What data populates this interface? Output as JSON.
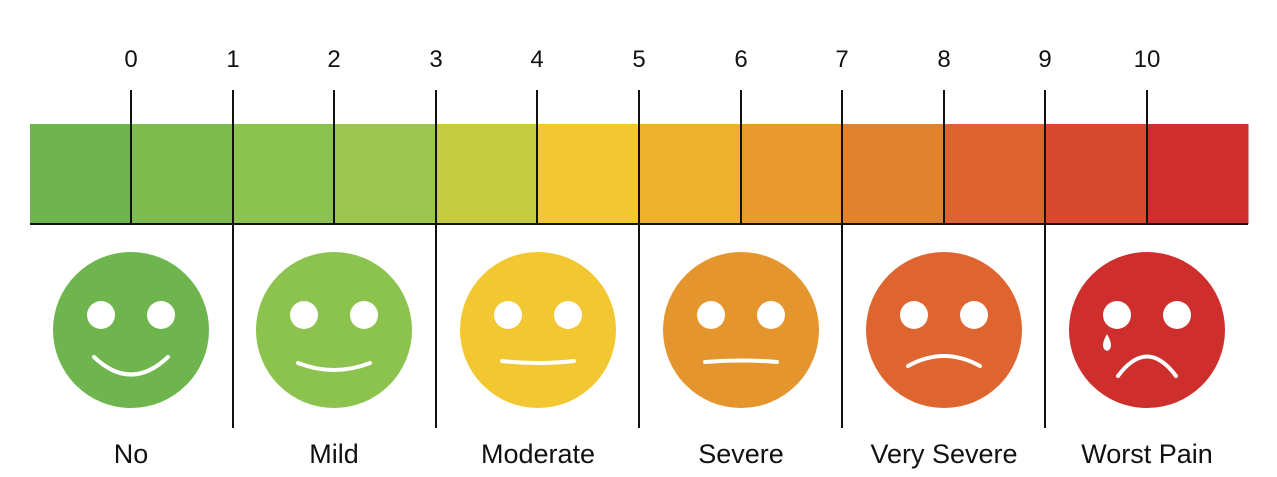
{
  "scale": {
    "ticks": [
      "0",
      "1",
      "2",
      "3",
      "4",
      "5",
      "6",
      "7",
      "8",
      "9",
      "10"
    ],
    "segment_colors": [
      "#6db54c",
      "#7dbc4c",
      "#8bc34e",
      "#9bc54c",
      "#c4cb3e",
      "#f2c732",
      "#edb12d",
      "#e89a2e",
      "#e2822c",
      "#dd6430",
      "#d8492e",
      "#cf2f2c"
    ],
    "line_color": "#111111"
  },
  "faces": [
    {
      "label": "No",
      "color": "#6db54c",
      "mood": "big-smile",
      "icon": "smiling-face-icon"
    },
    {
      "label": "Mild",
      "color": "#8bc34e",
      "mood": "smile",
      "icon": "slight-smile-face-icon"
    },
    {
      "label": "Moderate",
      "color": "#f2c732",
      "mood": "neutral",
      "icon": "neutral-face-icon"
    },
    {
      "label": "Severe",
      "color": "#e5952e",
      "mood": "flat",
      "icon": "flat-mouth-face-icon"
    },
    {
      "label": "Very Severe",
      "color": "#df6530",
      "mood": "frown",
      "icon": "frowning-face-icon"
    },
    {
      "label": "Worst Pain",
      "color": "#cf2f2c",
      "mood": "crying-frown",
      "icon": "crying-face-icon"
    }
  ]
}
